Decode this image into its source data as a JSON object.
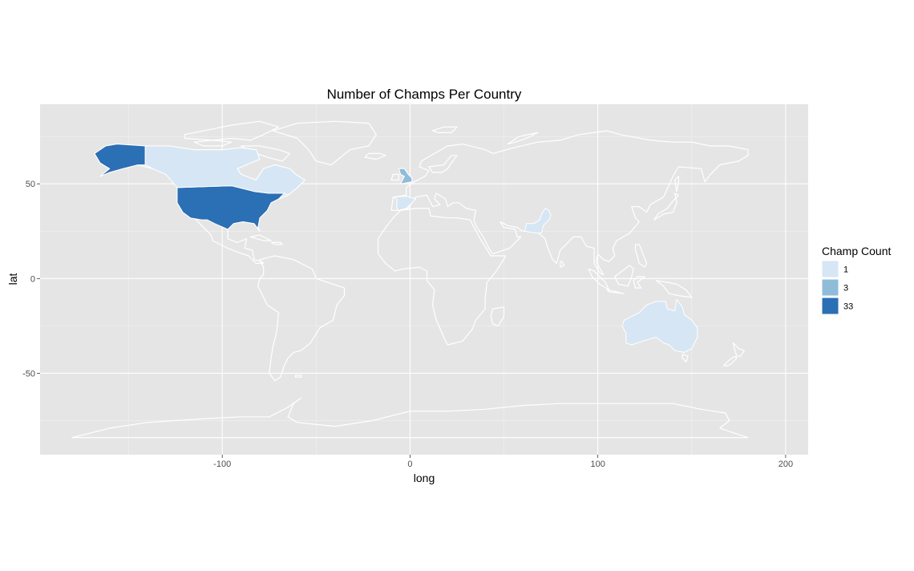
{
  "chart_data": {
    "type": "choropleth",
    "title": "Number of Champs Per Country",
    "xlabel": "long",
    "ylabel": "lat",
    "xlim": [
      -197,
      212
    ],
    "ylim": [
      -93,
      92
    ],
    "x_ticks": [
      -100,
      0,
      100,
      200
    ],
    "y_ticks": [
      -50,
      0,
      50
    ],
    "grid": true,
    "legend": {
      "title": "Champ Count",
      "placement": "right",
      "entries": [
        {
          "label": "1",
          "color": "#d6e6f4"
        },
        {
          "label": "3",
          "color": "#8fbcd9"
        },
        {
          "label": "33",
          "color": "#2b6fb4"
        }
      ]
    },
    "regions": [
      {
        "name": "United States",
        "value": 33
      },
      {
        "name": "Canada",
        "value": 1
      },
      {
        "name": "United Kingdom",
        "value": 3
      },
      {
        "name": "Spain",
        "value": 1
      },
      {
        "name": "Pakistan",
        "value": 1
      },
      {
        "name": "Australia",
        "value": 1
      }
    ]
  },
  "colors": {
    "panel_bg": "#e5e5e5",
    "grid_major": "#ffffff",
    "grid_minor": "#f2f2f2",
    "border": "#ffffff",
    "level_1": "#d6e6f4",
    "level_3": "#8fbcd9",
    "level_33": "#2b6fb4"
  }
}
